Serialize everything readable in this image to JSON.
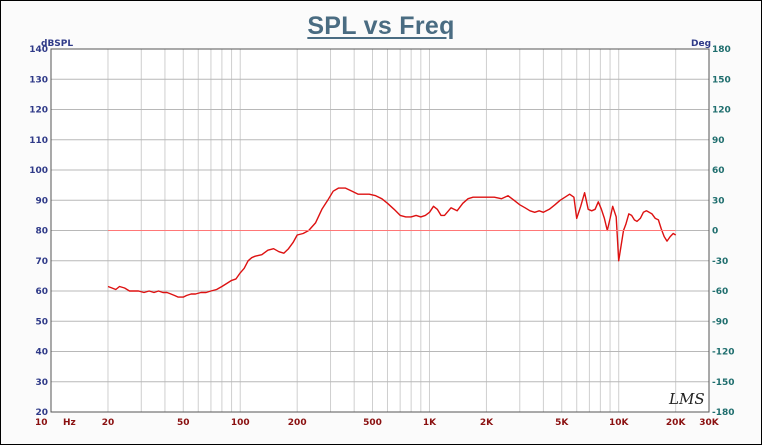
{
  "chart_data": {
    "type": "line",
    "title": "SPL vs Freq",
    "ylabel": "dBSPL",
    "y2label": "Deg",
    "xlabel": "Hz",
    "x_scale": "log",
    "xlim": [
      10,
      30000
    ],
    "ylim": [
      20,
      140
    ],
    "y2lim": [
      -180,
      180
    ],
    "x_ticks": [
      {
        "value": 10,
        "label": "10"
      },
      {
        "value": 20,
        "label": "20"
      },
      {
        "value": 50,
        "label": "50"
      },
      {
        "value": 100,
        "label": "100"
      },
      {
        "value": 200,
        "label": "200"
      },
      {
        "value": 500,
        "label": "500"
      },
      {
        "value": 1000,
        "label": "1K"
      },
      {
        "value": 2000,
        "label": "2K"
      },
      {
        "value": 5000,
        "label": "5K"
      },
      {
        "value": 10000,
        "label": "10K"
      },
      {
        "value": 20000,
        "label": "20K"
      },
      {
        "value": 30000,
        "label": "30K"
      }
    ],
    "y_ticks": [
      "140",
      "130",
      "120",
      "110",
      "100",
      "90",
      "80",
      "70",
      "60",
      "50",
      "40",
      "30",
      "20"
    ],
    "y2_ticks": [
      "180",
      "150",
      "120",
      "90",
      "60",
      "30",
      "0",
      "-30",
      "-60",
      "-90",
      "-120",
      "-150",
      "-180"
    ],
    "grid": true,
    "series": [
      {
        "axis": "left",
        "color": "#dd1111",
        "x": [
          20,
          21,
          22,
          23,
          24.5,
          26,
          27.5,
          29,
          31,
          33,
          35,
          37,
          39,
          41,
          43,
          45,
          47,
          50,
          52,
          55,
          58,
          62,
          66,
          70,
          75,
          80,
          85,
          90,
          95,
          100,
          105,
          110,
          115,
          120,
          130,
          140,
          150,
          160,
          170,
          180,
          190,
          200,
          215,
          230,
          250,
          270,
          290,
          310,
          330,
          360,
          390,
          420,
          450,
          480,
          520,
          560,
          600,
          650,
          700,
          750,
          800,
          850,
          900,
          950,
          1000,
          1050,
          1100,
          1150,
          1200,
          1300,
          1400,
          1500,
          1600,
          1700,
          1800,
          1900,
          2000,
          2200,
          2400,
          2600,
          2800,
          3000,
          3200,
          3400,
          3600,
          3800,
          4000,
          4300,
          4600,
          4900,
          5200,
          5500,
          5800,
          6000,
          6300,
          6600,
          6900,
          7200,
          7500,
          7800,
          8100,
          8400,
          8700,
          9000,
          9300,
          9700,
          10000,
          10300,
          10600,
          10900,
          11300,
          11700,
          12100,
          12500,
          13000,
          13500,
          14000,
          14500,
          15000,
          15600,
          16200,
          16800,
          17400,
          18000,
          18700,
          19400,
          20000
        ],
        "y": [
          61.5,
          61,
          60.5,
          61.5,
          61,
          60,
          60,
          60,
          59.5,
          60,
          59.5,
          60,
          59.5,
          59.5,
          59,
          58.5,
          58,
          58,
          58.5,
          59,
          59,
          59.5,
          59.5,
          60,
          60.5,
          61.5,
          62.5,
          63.5,
          64,
          66,
          67.5,
          70,
          71,
          71.5,
          72,
          73.5,
          74,
          73,
          72.5,
          74,
          76,
          78.5,
          79,
          80,
          82.5,
          87,
          90,
          93,
          94,
          94,
          93,
          92,
          92,
          92,
          91.5,
          90.5,
          89,
          87,
          85,
          84.5,
          84.5,
          85,
          84.5,
          85,
          86,
          88,
          87,
          85,
          85,
          87.5,
          86.5,
          89,
          90.5,
          91,
          91,
          91,
          91,
          91,
          90.5,
          91.5,
          90,
          88.5,
          87.5,
          86.5,
          86,
          86.5,
          86,
          87,
          88.5,
          90,
          91,
          92,
          91,
          84,
          88,
          92.5,
          87,
          86.5,
          87,
          89.5,
          87,
          84,
          80,
          84,
          88,
          84.5,
          70,
          75,
          80,
          82,
          85.5,
          85,
          83.5,
          83,
          84,
          86,
          86.5,
          86,
          85.5,
          84,
          83.5,
          80.5,
          78,
          76.5,
          78,
          79,
          78.5
        ]
      },
      {
        "axis": "left",
        "color": "#ff7777",
        "x": [
          20,
          20000
        ],
        "y": [
          80,
          80
        ]
      }
    ]
  },
  "logo_text": "LMS"
}
